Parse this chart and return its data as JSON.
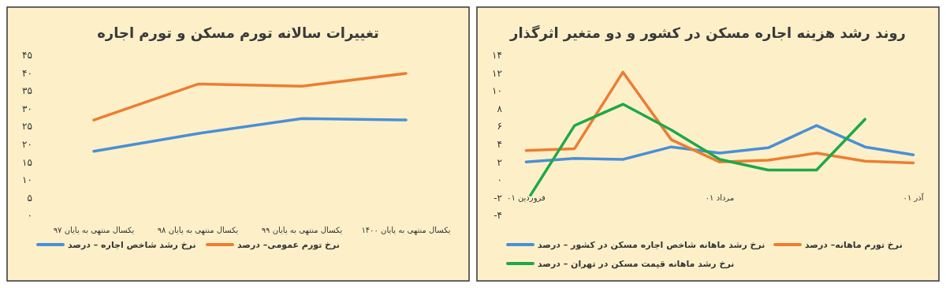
{
  "chart_data": [
    {
      "type": "line",
      "title": "تغییرات سالانه تورم مسکن و تورم اجاره",
      "categories": [
        "یکسال منتهی به پایان ۹۷",
        "یکسال منتهی به پایان ۹۸",
        "یکسال منتهی به پایان ۹۹",
        "یکسال منتهی به پایان ۱۴۰۰"
      ],
      "series": [
        {
          "name": "نرخ رشد شاخص اجاره – درصد",
          "color": "#4a8fd6",
          "values": [
            18,
            23,
            27.2,
            26.8
          ]
        },
        {
          "name": "نرخ تورم عمومی– درصد",
          "color": "#ed7d31",
          "values": [
            26.8,
            36.9,
            36.3,
            39.9
          ]
        }
      ],
      "ylim": [
        0,
        45
      ],
      "yticks": [
        {
          "value": 0,
          "label": "۰"
        },
        {
          "value": 5,
          "label": "۵"
        },
        {
          "value": 10,
          "label": "۱۰"
        },
        {
          "value": 15,
          "label": "۱۵"
        },
        {
          "value": 20,
          "label": "۲۰"
        },
        {
          "value": 25,
          "label": "۲۵"
        },
        {
          "value": 30,
          "label": "۳۰"
        },
        {
          "value": 35,
          "label": "۳۵"
        },
        {
          "value": 40,
          "label": "۴۰"
        },
        {
          "value": 45,
          "label": "۴۵"
        }
      ],
      "grid": false,
      "legend": "bottom"
    },
    {
      "type": "line",
      "title": "روند رشد هزینه اجاره مسکن در کشور و دو متغیر اثرگذار",
      "categories": [
        "فروردین ۰۱",
        null,
        null,
        null,
        "مرداد ۰۱",
        null,
        null,
        null,
        "آذر ۰۱"
      ],
      "series": [
        {
          "name": "نرخ رشد ماهانه شاخص اجاره مسکن در کشور – درصد",
          "color": "#4a8fd6",
          "values": [
            2,
            2.4,
            2.3,
            3.7,
            3,
            3.6,
            6.1,
            3.7,
            2.8
          ]
        },
        {
          "name": "نرخ تورم ماهانه– درصد",
          "color": "#ed7d31",
          "values": [
            3.3,
            3.5,
            12.1,
            4.5,
            2,
            2.2,
            3,
            2.1,
            1.9
          ]
        },
        {
          "name": "نرخ رشد ماهانه قیمت مسکن در تهران – درصد",
          "color": "#1fa84a",
          "values": [
            -2.5,
            6.1,
            8.5,
            5.6,
            2.3,
            1.1,
            1.1,
            6.8,
            null
          ]
        }
      ],
      "ylim": [
        -4,
        14
      ],
      "yticks": [
        {
          "value": -4,
          "label": "-۴"
        },
        {
          "value": -2,
          "label": "-۲"
        },
        {
          "value": 0,
          "label": "۰"
        },
        {
          "value": 2,
          "label": "۲"
        },
        {
          "value": 4,
          "label": "۴"
        },
        {
          "value": 6,
          "label": "۶"
        },
        {
          "value": 8,
          "label": "۸"
        },
        {
          "value": 10,
          "label": "۱۰"
        },
        {
          "value": 12,
          "label": "۱۲"
        },
        {
          "value": 14,
          "label": "۱۴"
        }
      ],
      "grid": false,
      "legend": "bottom"
    }
  ]
}
